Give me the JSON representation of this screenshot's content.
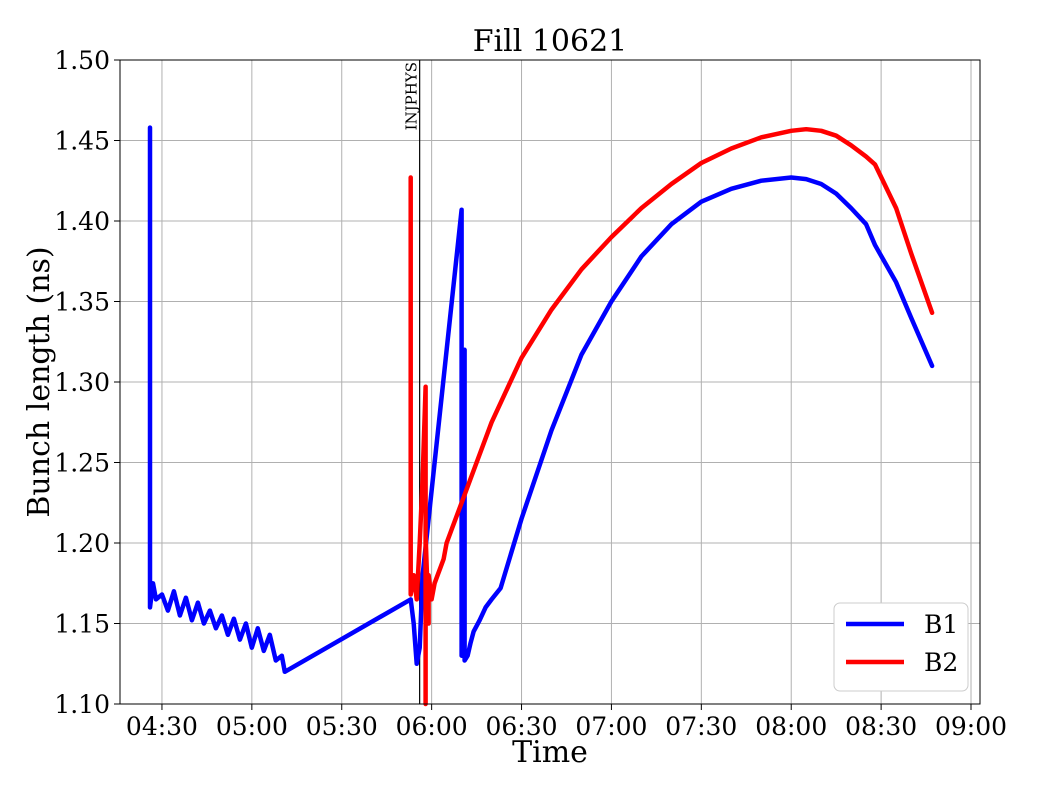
{
  "chart_data": {
    "type": "line",
    "title": "Fill 10621",
    "xlabel": "Time",
    "ylabel": "Bunch length (ns)",
    "xlim": [
      "04:16",
      "09:03"
    ],
    "ylim": [
      1.1,
      1.5
    ],
    "grid": true,
    "legend_position": "lower-right",
    "x_ticks": [
      "04:30",
      "05:00",
      "05:30",
      "06:00",
      "06:30",
      "07:00",
      "07:30",
      "08:00",
      "08:30",
      "09:00"
    ],
    "y_ticks": [
      "1.10",
      "1.15",
      "1.20",
      "1.25",
      "1.30",
      "1.35",
      "1.40",
      "1.45",
      "1.50"
    ],
    "annotations": [
      {
        "label": "INJPHYS",
        "x": "05:56"
      }
    ],
    "series": [
      {
        "name": "B1",
        "color": "#0000ff",
        "x": [
          "04:26",
          "04:26",
          "04:26",
          "04:27",
          "04:28",
          "04:30",
          "04:32",
          "04:34",
          "04:36",
          "04:38",
          "04:40",
          "04:42",
          "04:44",
          "04:46",
          "04:48",
          "04:50",
          "04:52",
          "04:54",
          "04:56",
          "04:58",
          "05:00",
          "05:02",
          "05:04",
          "05:06",
          "05:08",
          "05:10",
          "05:11",
          "05:53",
          "05:54",
          "05:55",
          "05:56",
          "05:57",
          "06:10",
          "06:10",
          "06:11",
          "06:11",
          "06:12",
          "06:13",
          "06:14",
          "06:16",
          "06:18",
          "06:20",
          "06:23",
          "06:30",
          "06:40",
          "06:50",
          "07:00",
          "07:10",
          "07:20",
          "07:30",
          "07:40",
          "07:50",
          "08:00",
          "08:05",
          "08:10",
          "08:15",
          "08:20",
          "08:25",
          "08:28",
          "08:35",
          "08:40",
          "08:47"
        ],
        "y": [
          1.17,
          1.458,
          1.16,
          1.175,
          1.165,
          1.168,
          1.158,
          1.17,
          1.155,
          1.166,
          1.152,
          1.163,
          1.15,
          1.158,
          1.147,
          1.155,
          1.143,
          1.153,
          1.14,
          1.15,
          1.135,
          1.147,
          1.133,
          1.143,
          1.127,
          1.13,
          1.12,
          1.165,
          1.15,
          1.125,
          1.135,
          1.18,
          1.407,
          1.13,
          1.32,
          1.127,
          1.13,
          1.138,
          1.145,
          1.152,
          1.16,
          1.165,
          1.172,
          1.215,
          1.27,
          1.317,
          1.35,
          1.378,
          1.398,
          1.412,
          1.42,
          1.425,
          1.427,
          1.426,
          1.423,
          1.417,
          1.408,
          1.398,
          1.385,
          1.362,
          1.34,
          1.31
        ]
      },
      {
        "name": "B2",
        "color": "#ff0000",
        "x": [
          "05:53",
          "05:53",
          "05:53",
          "05:54",
          "05:55",
          "05:56",
          "05:57",
          "05:58",
          "05:58",
          "05:58",
          "05:59",
          "05:59",
          "06:00",
          "06:01",
          "06:02",
          "06:03",
          "06:04",
          "06:05",
          "06:07",
          "06:10",
          "06:15",
          "06:20",
          "06:30",
          "06:40",
          "06:50",
          "07:00",
          "07:10",
          "07:20",
          "07:30",
          "07:40",
          "07:50",
          "08:00",
          "08:05",
          "08:10",
          "08:15",
          "08:20",
          "08:25",
          "08:28",
          "08:35",
          "08:40",
          "08:47"
        ],
        "y": [
          1.17,
          1.427,
          1.168,
          1.18,
          1.165,
          1.2,
          1.24,
          1.297,
          1.1,
          1.205,
          1.15,
          1.18,
          1.165,
          1.175,
          1.18,
          1.185,
          1.19,
          1.2,
          1.21,
          1.225,
          1.25,
          1.275,
          1.315,
          1.345,
          1.37,
          1.39,
          1.408,
          1.423,
          1.436,
          1.445,
          1.452,
          1.456,
          1.457,
          1.456,
          1.453,
          1.447,
          1.44,
          1.435,
          1.408,
          1.38,
          1.343
        ]
      }
    ]
  }
}
